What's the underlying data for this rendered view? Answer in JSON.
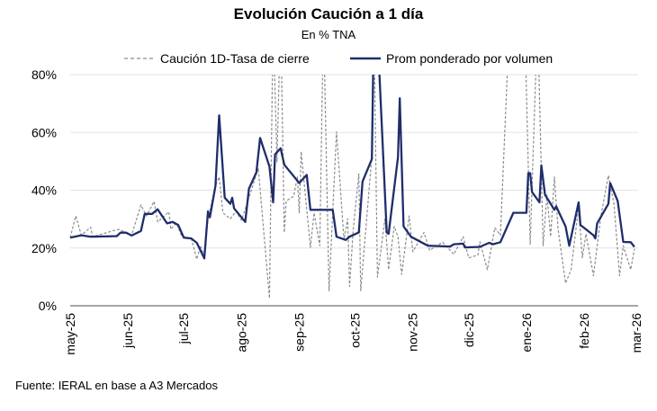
{
  "chart_data": {
    "type": "line",
    "title": "Evolución Caución a 1 día",
    "subtitle": "En % TNA",
    "source": "Fuente: IERAL en base a A3 Mercados",
    "xlim": [
      "2025-05-01",
      "2026-03-01"
    ],
    "ylim": [
      0,
      80
    ],
    "y_ticks": [
      "0%",
      "20%",
      "40%",
      "60%",
      "80%"
    ],
    "y_tick_values": [
      0,
      20,
      40,
      60,
      80
    ],
    "x_ticks": [
      "may-25",
      "jun-25",
      "jul-25",
      "ago-25",
      "sep-25",
      "oct-25",
      "nov-25",
      "dic-25",
      "ene-26",
      "feb-26",
      "mar-26"
    ],
    "x_tick_dates": [
      "2025-05-01",
      "2025-06-01",
      "2025-07-01",
      "2025-08-01",
      "2025-09-01",
      "2025-10-01",
      "2025-11-01",
      "2025-12-01",
      "2026-01-01",
      "2026-02-01",
      "2026-03-01"
    ],
    "grid": true,
    "legend": "top",
    "series": [
      {
        "name": "Caución 1D-Tasa de cierre",
        "color": "#8c8c8c",
        "style": "dashed",
        "points": [
          [
            "2025-05-01",
            23.6
          ],
          [
            "2025-05-04",
            31.1
          ],
          [
            "2025-05-07",
            24.4
          ],
          [
            "2025-05-12",
            27.2
          ],
          [
            "2025-05-13",
            23.9
          ],
          [
            "2025-05-27",
            26.5
          ],
          [
            "2025-06-03",
            24.5
          ],
          [
            "2025-06-08",
            34.9
          ],
          [
            "2025-06-11",
            31.1
          ],
          [
            "2025-06-15",
            36.1
          ],
          [
            "2025-06-17",
            29.0
          ],
          [
            "2025-06-23",
            32.5
          ],
          [
            "2025-06-24",
            26.5
          ],
          [
            "2025-06-27",
            28.6
          ],
          [
            "2025-06-30",
            23.9
          ],
          [
            "2025-07-05",
            23.3
          ],
          [
            "2025-07-08",
            16.1
          ],
          [
            "2025-07-10",
            20.8
          ],
          [
            "2025-07-12",
            16.8
          ],
          [
            "2025-07-14",
            30.2
          ],
          [
            "2025-07-18",
            41.5
          ],
          [
            "2025-07-20",
            44.6
          ],
          [
            "2025-07-22",
            32.2
          ],
          [
            "2025-07-26",
            30.1
          ],
          [
            "2025-07-29",
            32.7
          ],
          [
            "2025-08-01",
            29.6
          ],
          [
            "2025-08-06",
            39.4
          ],
          [
            "2025-08-10",
            47.7
          ],
          [
            "2025-08-16",
            2.6
          ],
          [
            "2025-08-18",
            100
          ],
          [
            "2025-08-20",
            49.8
          ],
          [
            "2025-08-22",
            100
          ],
          [
            "2025-08-24",
            25.4
          ],
          [
            "2025-08-25",
            36.3
          ],
          [
            "2025-08-29",
            37.9
          ],
          [
            "2025-08-31",
            44.6
          ],
          [
            "2025-09-01",
            32.2
          ],
          [
            "2025-09-02",
            53.4
          ],
          [
            "2025-09-07",
            20.2
          ],
          [
            "2025-09-09",
            32.2
          ],
          [
            "2025-09-12",
            20.8
          ],
          [
            "2025-09-14",
            100
          ],
          [
            "2025-09-17",
            5.2
          ],
          [
            "2025-09-21",
            60.2
          ],
          [
            "2025-09-25",
            22.8
          ],
          [
            "2025-09-27",
            30.1
          ],
          [
            "2025-09-28",
            6.7
          ],
          [
            "2025-09-30",
            26.5
          ],
          [
            "2025-10-03",
            45.7
          ],
          [
            "2025-10-04",
            5.2
          ],
          [
            "2025-10-10",
            51.9
          ],
          [
            "2025-10-11",
            100
          ],
          [
            "2025-10-13",
            9.9
          ],
          [
            "2025-10-17",
            30.1
          ],
          [
            "2025-10-19",
            12.5
          ],
          [
            "2025-10-22",
            27.5
          ],
          [
            "2025-10-24",
            23.9
          ],
          [
            "2025-10-26",
            10.9
          ],
          [
            "2025-10-30",
            31.1
          ],
          [
            "2025-11-01",
            18.7
          ],
          [
            "2025-11-07",
            25.4
          ],
          [
            "2025-11-10",
            19.2
          ],
          [
            "2025-11-17",
            22.0
          ],
          [
            "2025-11-23",
            17.8
          ],
          [
            "2025-11-28",
            23.9
          ],
          [
            "2025-12-01",
            16.6
          ],
          [
            "2025-12-06",
            17.6
          ],
          [
            "2025-12-07",
            22.2
          ],
          [
            "2025-12-11",
            12.5
          ],
          [
            "2025-12-15",
            27.0
          ],
          [
            "2025-12-18",
            24.4
          ],
          [
            "2025-12-23",
            100
          ],
          [
            "2025-12-31",
            100
          ],
          [
            "2026-01-03",
            21.3
          ],
          [
            "2026-01-07",
            100
          ],
          [
            "2026-01-10",
            20.8
          ],
          [
            "2026-01-12",
            38.4
          ],
          [
            "2026-01-14",
            23.9
          ],
          [
            "2026-01-16",
            44.6
          ],
          [
            "2026-01-18",
            26.5
          ],
          [
            "2026-01-22",
            7.8
          ],
          [
            "2026-01-25",
            12.5
          ],
          [
            "2026-01-29",
            34.2
          ],
          [
            "2026-01-31",
            16.6
          ],
          [
            "2026-02-02",
            24.9
          ],
          [
            "2026-02-06",
            10.4
          ],
          [
            "2026-02-10",
            31.1
          ],
          [
            "2026-02-14",
            45.1
          ],
          [
            "2026-02-17",
            35.3
          ],
          [
            "2026-02-20",
            10.4
          ],
          [
            "2026-02-22",
            20.8
          ],
          [
            "2026-02-26",
            12.5
          ],
          [
            "2026-02-28",
            19.7
          ]
        ]
      },
      {
        "name": "Prom ponderado por volumen",
        "color": "#1f2d6b",
        "style": "solid",
        "points": [
          [
            "2025-05-01",
            23.6
          ],
          [
            "2025-05-07",
            24.4
          ],
          [
            "2025-05-12",
            23.9
          ],
          [
            "2025-05-26",
            24.1
          ],
          [
            "2025-05-28",
            25.3
          ],
          [
            "2025-05-31",
            25.3
          ],
          [
            "2025-06-03",
            24.3
          ],
          [
            "2025-06-08",
            25.9
          ],
          [
            "2025-06-10",
            31.8
          ],
          [
            "2025-06-14",
            31.8
          ],
          [
            "2025-06-17",
            33.4
          ],
          [
            "2025-06-22",
            28.5
          ],
          [
            "2025-06-25",
            29.0
          ],
          [
            "2025-06-28",
            28.0
          ],
          [
            "2025-07-01",
            23.6
          ],
          [
            "2025-07-05",
            23.3
          ],
          [
            "2025-07-08",
            21.8
          ],
          [
            "2025-07-12",
            16.4
          ],
          [
            "2025-07-14",
            32.7
          ],
          [
            "2025-07-15",
            30.6
          ],
          [
            "2025-07-18",
            41.5
          ],
          [
            "2025-07-20",
            65.9
          ],
          [
            "2025-07-23",
            37.4
          ],
          [
            "2025-07-26",
            35.3
          ],
          [
            "2025-07-27",
            37.4
          ],
          [
            "2025-07-28",
            33.7
          ],
          [
            "2025-08-03",
            29.0
          ],
          [
            "2025-08-05",
            40.5
          ],
          [
            "2025-08-09",
            46.2
          ],
          [
            "2025-08-11",
            58.1
          ],
          [
            "2025-08-16",
            48.2
          ],
          [
            "2025-08-18",
            35.8
          ],
          [
            "2025-08-19",
            52.4
          ],
          [
            "2025-08-22",
            54.5
          ],
          [
            "2025-08-24",
            48.8
          ],
          [
            "2025-09-01",
            42.5
          ],
          [
            "2025-09-05",
            45.3
          ],
          [
            "2025-09-07",
            33.2
          ],
          [
            "2025-09-19",
            33.2
          ],
          [
            "2025-09-21",
            23.9
          ],
          [
            "2025-09-26",
            22.8
          ],
          [
            "2025-09-28",
            23.9
          ],
          [
            "2025-10-03",
            25.4
          ],
          [
            "2025-10-05",
            43.0
          ],
          [
            "2025-10-10",
            50.8
          ],
          [
            "2025-10-11",
            95
          ],
          [
            "2025-10-13",
            95
          ],
          [
            "2025-10-18",
            25.4
          ],
          [
            "2025-10-19",
            24.9
          ],
          [
            "2025-10-24",
            51.4
          ],
          [
            "2025-10-25",
            71.8
          ],
          [
            "2025-10-27",
            27.5
          ],
          [
            "2025-10-31",
            23.9
          ],
          [
            "2025-11-09",
            20.8
          ],
          [
            "2025-11-21",
            20.5
          ],
          [
            "2025-11-23",
            21.3
          ],
          [
            "2025-11-28",
            21.5
          ],
          [
            "2025-11-29",
            20.2
          ],
          [
            "2025-12-07",
            20.4
          ],
          [
            "2025-12-12",
            21.8
          ],
          [
            "2025-12-14",
            21.3
          ],
          [
            "2025-12-18",
            22.0
          ],
          [
            "2025-12-25",
            32.2
          ],
          [
            "2026-01-01",
            32.2
          ],
          [
            "2026-01-02",
            45.9
          ],
          [
            "2026-01-03",
            45.9
          ],
          [
            "2026-01-04",
            39.4
          ],
          [
            "2026-01-08",
            35.8
          ],
          [
            "2026-01-09",
            48.6
          ],
          [
            "2026-01-11",
            38.4
          ],
          [
            "2026-01-16",
            33.2
          ],
          [
            "2026-01-17",
            34.4
          ],
          [
            "2026-01-22",
            27.5
          ],
          [
            "2026-01-24",
            20.8
          ],
          [
            "2026-01-29",
            35.8
          ],
          [
            "2026-01-30",
            28.0
          ],
          [
            "2026-02-06",
            24.4
          ],
          [
            "2026-02-07",
            23.3
          ],
          [
            "2026-02-08",
            28.5
          ],
          [
            "2026-02-14",
            35.3
          ],
          [
            "2026-02-15",
            42.5
          ],
          [
            "2026-02-19",
            36.3
          ],
          [
            "2026-02-22",
            22.1
          ],
          [
            "2026-02-26",
            22.0
          ],
          [
            "2026-02-28",
            20.4
          ]
        ]
      }
    ]
  }
}
